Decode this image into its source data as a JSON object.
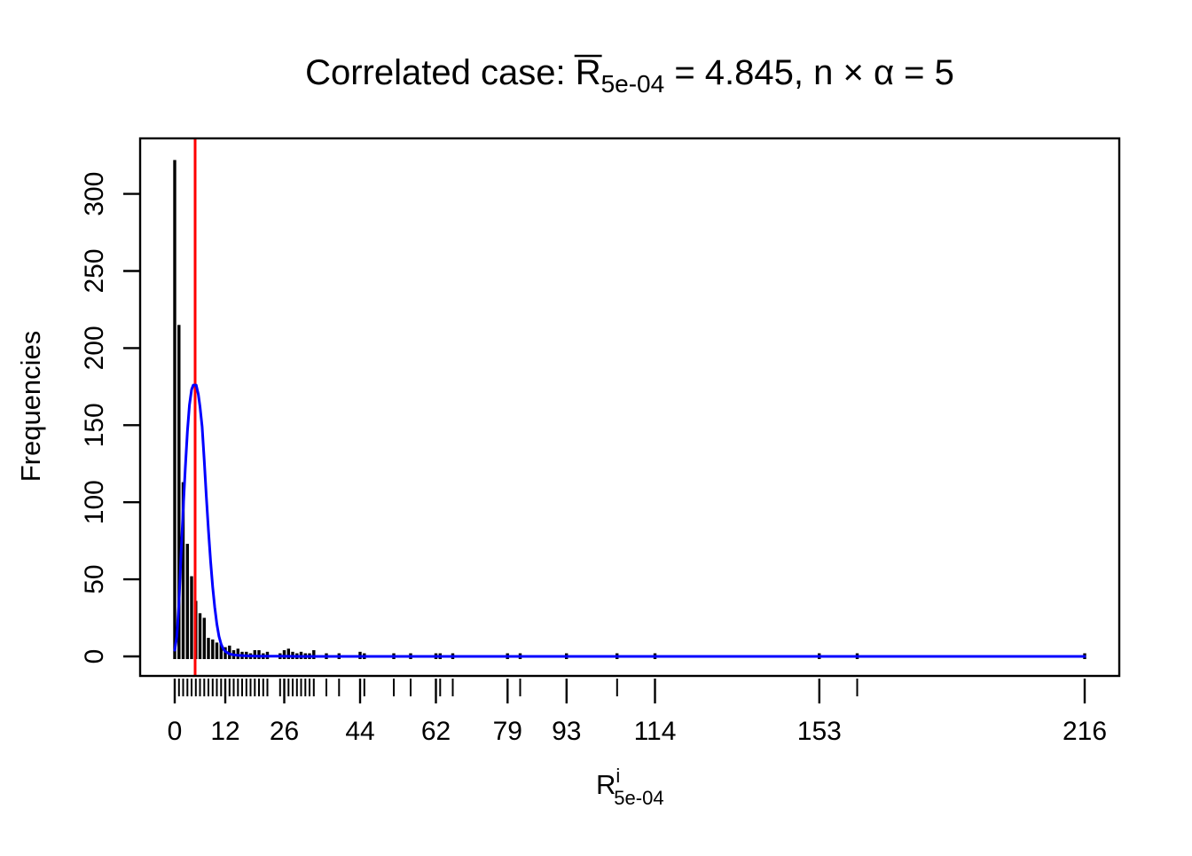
{
  "title": {
    "prefix": "Correlated case: ",
    "r_symbol": "R",
    "r_subscript": "5e-04",
    "equation_rest": " = 4.845, n × α = 5",
    "mean_value": "4.845",
    "n_alpha_value": "5"
  },
  "axes": {
    "y_label": "Frequencies",
    "x_label_base": "R",
    "x_label_superscript": "i",
    "x_label_subscript": "5e-04"
  },
  "chart_data": {
    "type": "bar",
    "subtype": "spike-histogram-with-fitted-curve-and-rug",
    "title": "Correlated case: mean R_5e-04 = 4.845, n x alpha = 5",
    "xlabel": "R^i_5e-04",
    "ylabel": "Frequencies",
    "xlim": [
      0,
      216
    ],
    "ylim": [
      0,
      336
    ],
    "grid": false,
    "legend": false,
    "y_ticks": [
      0,
      50,
      100,
      150,
      200,
      250,
      300
    ],
    "x_tick_labels": [
      0,
      12,
      26,
      44,
      62,
      79,
      93,
      114,
      153,
      216
    ],
    "bars": {
      "x": [
        0,
        1,
        2,
        3,
        4,
        5,
        6,
        7,
        8,
        9,
        10,
        11,
        12,
        13,
        14,
        15,
        16,
        17,
        18,
        19,
        20,
        21,
        22,
        25,
        26,
        27,
        28,
        29,
        30,
        31,
        32,
        33,
        36,
        39,
        44,
        45,
        52,
        56,
        62,
        63,
        66,
        79,
        82,
        93,
        105,
        114,
        153,
        162,
        216
      ],
      "freq": [
        322,
        215,
        113,
        73,
        52,
        36,
        28,
        25,
        12,
        11,
        9,
        8,
        6,
        7,
        4,
        5,
        3,
        3,
        2,
        4,
        4,
        2,
        3,
        2,
        4,
        5,
        3,
        2,
        3,
        2,
        2,
        4,
        2,
        2,
        3,
        2,
        2,
        2,
        2,
        2,
        2,
        2,
        2,
        2,
        2,
        2,
        2,
        2,
        2
      ]
    },
    "rug_values": [
      0,
      1,
      2,
      3,
      4,
      5,
      6,
      7,
      8,
      9,
      10,
      11,
      12,
      13,
      14,
      15,
      16,
      17,
      18,
      19,
      20,
      21,
      22,
      25,
      26,
      27,
      28,
      29,
      30,
      31,
      32,
      33,
      36,
      39,
      44,
      45,
      52,
      56,
      62,
      63,
      66,
      79,
      82,
      93,
      105,
      114,
      153,
      162,
      216
    ],
    "fitted_curve": {
      "color": "#0000FF",
      "points": [
        [
          0,
          4
        ],
        [
          0.5,
          13
        ],
        [
          1,
          35
        ],
        [
          1.5,
          66
        ],
        [
          2,
          95
        ],
        [
          2.5,
          122
        ],
        [
          3,
          146
        ],
        [
          3.5,
          163
        ],
        [
          4,
          173
        ],
        [
          4.4,
          176
        ],
        [
          5.1,
          176
        ],
        [
          5.6,
          170
        ],
        [
          6,
          162
        ],
        [
          6.5,
          149
        ],
        [
          7,
          127
        ],
        [
          7.5,
          104
        ],
        [
          8,
          82
        ],
        [
          8.5,
          62
        ],
        [
          9,
          45
        ],
        [
          9.5,
          32
        ],
        [
          10,
          21
        ],
        [
          10.5,
          13
        ],
        [
          11,
          8
        ],
        [
          11.5,
          5
        ],
        [
          12,
          3.2
        ],
        [
          13,
          1.6
        ],
        [
          14,
          1
        ],
        [
          15,
          0.7
        ],
        [
          16,
          0.5
        ],
        [
          18,
          0.3
        ],
        [
          20,
          0.2
        ],
        [
          25,
          0.1
        ],
        [
          30,
          0
        ],
        [
          50,
          0
        ],
        [
          100,
          0
        ],
        [
          150,
          0
        ],
        [
          216,
          0
        ]
      ]
    },
    "mean_line": {
      "value": 4.845,
      "color": "#FF0000"
    },
    "colors": {
      "bars": "#000000",
      "box": "#000000",
      "background": "#FFFFFF"
    }
  }
}
